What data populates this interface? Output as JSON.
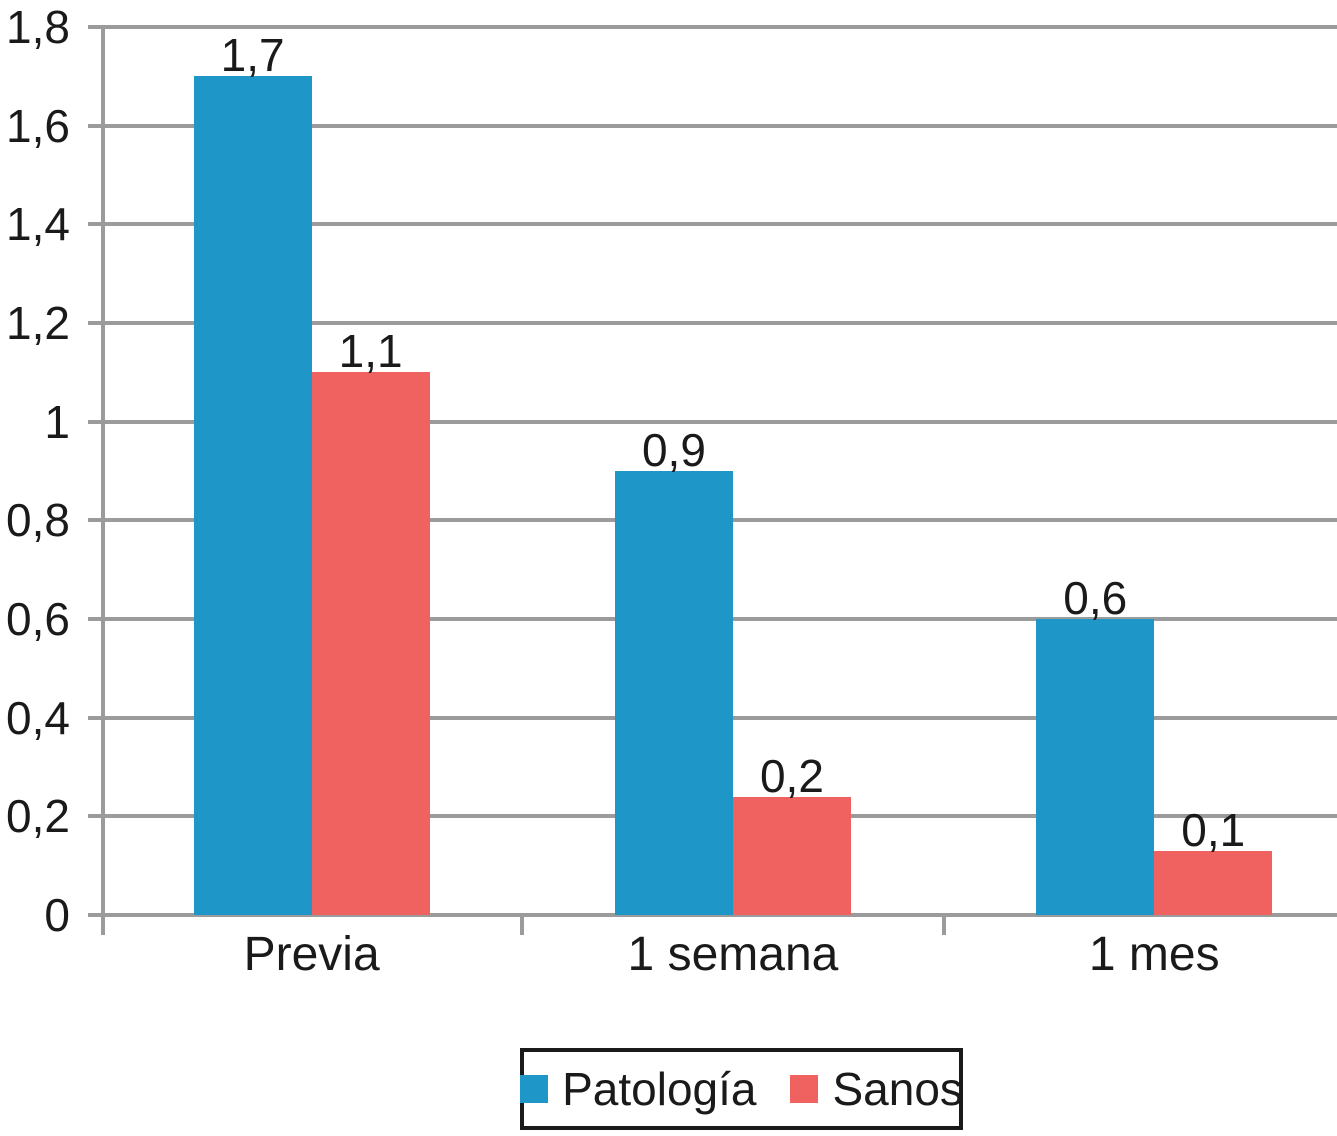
{
  "chart_data": {
    "type": "bar",
    "categories": [
      "Previa",
      "1 semana",
      "1 mes"
    ],
    "series": [
      {
        "name": "Patología",
        "color": "#1e96c8",
        "values": [
          1.7,
          0.9,
          0.6
        ],
        "labels": [
          "1,7",
          "0,9",
          "0,6"
        ]
      },
      {
        "name": "Sanos",
        "color": "#f0625f",
        "values": [
          1.1,
          0.2,
          0.1
        ],
        "plotted_values": [
          1.1,
          0.24,
          0.13
        ],
        "labels": [
          "1,1",
          "0,2",
          "0,1"
        ]
      }
    ],
    "title": "",
    "xlabel": "",
    "ylabel": "",
    "ylim": [
      0,
      1.8
    ],
    "ytick_step": 0.2,
    "ytick_labels": [
      "0",
      "0,2",
      "0,4",
      "0,6",
      "0,8",
      "1",
      "1,2",
      "1,4",
      "1,6",
      "1,8"
    ],
    "grid": true,
    "legend_position": "bottom",
    "decimal_separator": ","
  },
  "colors": {
    "patologia": "#1e96c8",
    "sanos": "#f0625f",
    "grid": "#9b9b9b",
    "text": "#1a1a1a",
    "legend_border": "#1a1a1a",
    "background": "#ffffff"
  }
}
